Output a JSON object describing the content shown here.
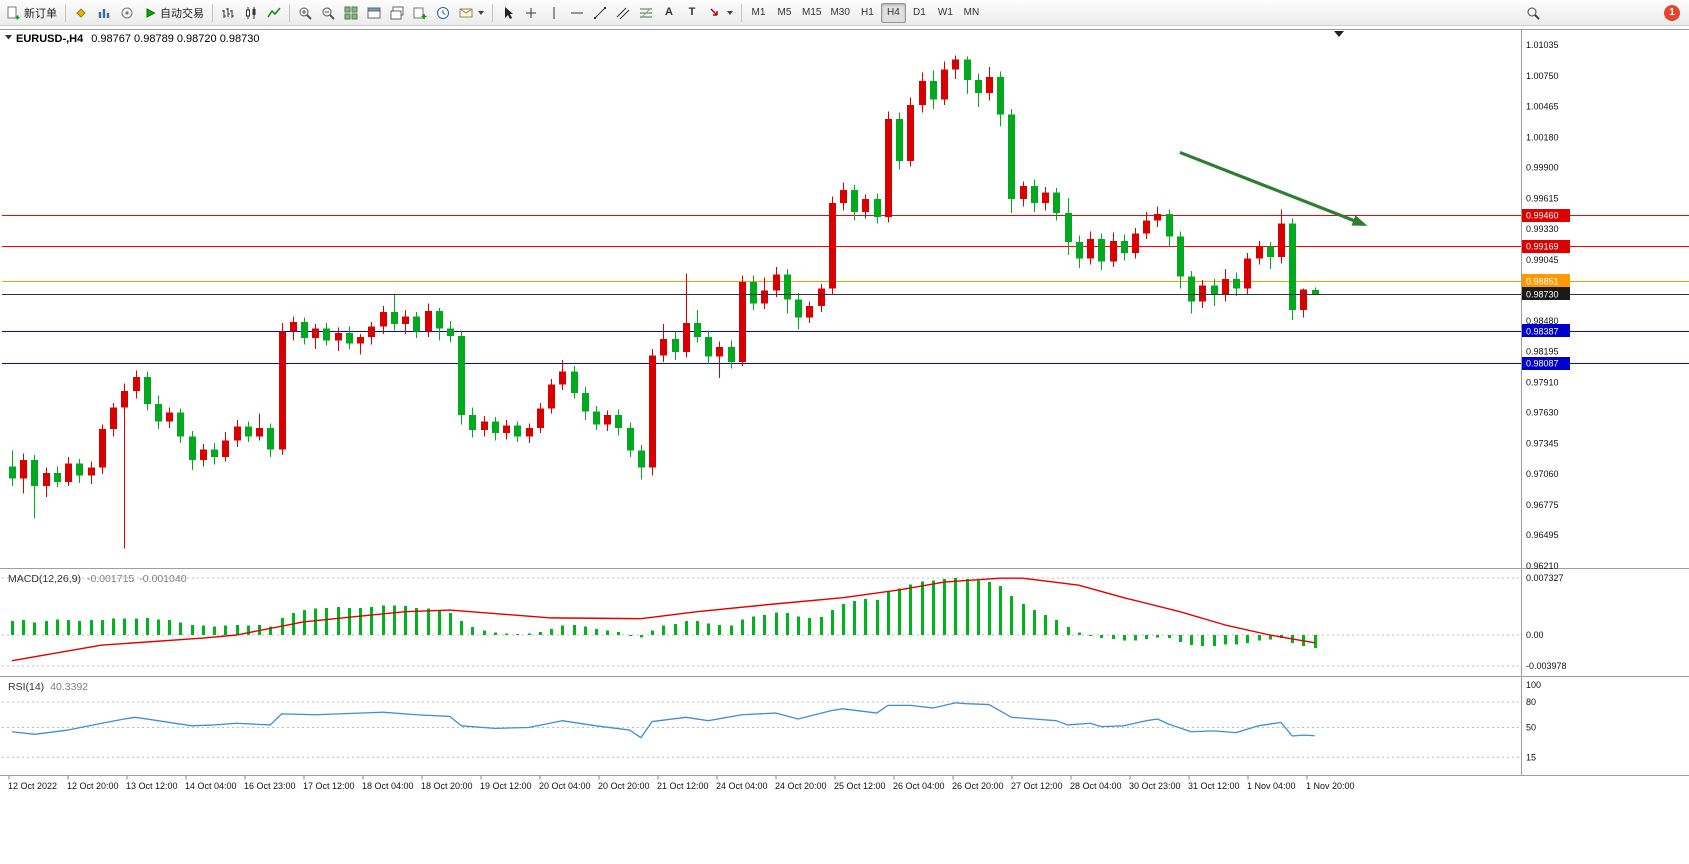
{
  "toolbar": {
    "new_order_label": "新订单",
    "auto_trading_label": "自动交易",
    "text_tool_label": "A",
    "label_tool_label": "T",
    "timeframes": [
      "M1",
      "M5",
      "M15",
      "M30",
      "H1",
      "H4",
      "D1",
      "W1",
      "MN"
    ],
    "active_timeframe": "H4",
    "notification_count": "1"
  },
  "chart_data": {
    "type": "candlestick",
    "symbol": "EURUSD-",
    "timeframe": "H4",
    "title": "EURUSD-,H4",
    "ohlc": [
      "0.98767",
      "0.98789",
      "0.98720",
      "0.98730"
    ],
    "view": {
      "price_top": 1.01035,
      "price_bottom": 0.9621
    },
    "colors": {
      "bull": "#d90000",
      "bear": "#00a91e",
      "macd_hist": "#00b41e",
      "macd_signal": "#e00000",
      "rsi_line": "#3f8fd6",
      "arrow": "#2f7d33"
    },
    "price_axis_labels": [
      "1.01035",
      "1.00750",
      "1.00465",
      "1.00180",
      "0.99900",
      "0.99615",
      "0.99330",
      "0.99045",
      "0.98760",
      "0.98480",
      "0.98195",
      "0.97910",
      "0.97630",
      "0.97345",
      "0.97060",
      "0.96775",
      "0.96495",
      "0.96210"
    ],
    "current_bid": {
      "price": 0.9873,
      "label": "0.98730",
      "line_color": "#333333",
      "tag_color": "#1a1a1a"
    },
    "hlines": [
      {
        "price": 0.9946,
        "label": "0.99460",
        "color": "#ff0000",
        "tag_bg": "#dd0000"
      },
      {
        "price": 0.99169,
        "label": "0.99169",
        "color": "#ff0000",
        "tag_bg": "#dd0000"
      },
      {
        "price": 0.98851,
        "label": "0.98851",
        "color": "#ff9900",
        "tag_bg": "#ff9900"
      },
      {
        "price": 0.98387,
        "label": "0.98387",
        "color": "#0000ff",
        "tag_bg": "#0000cc"
      },
      {
        "price": 0.98087,
        "label": "0.98087",
        "color": "#0000ff",
        "tag_bg": "#0000cc"
      }
    ],
    "trend_arrow": {
      "from_index": 104,
      "from_price": 1.0004,
      "to_index": 120.7,
      "to_price": 0.9936
    },
    "candles": [
      [
        0.9713,
        0.9728,
        0.9695,
        0.9702
      ],
      [
        0.9702,
        0.9725,
        0.9688,
        0.9719
      ],
      [
        0.9719,
        0.9724,
        0.9665,
        0.9695
      ],
      [
        0.9695,
        0.9712,
        0.9685,
        0.9707
      ],
      [
        0.9707,
        0.9713,
        0.9694,
        0.9699
      ],
      [
        0.9699,
        0.9722,
        0.9695,
        0.9716
      ],
      [
        0.9716,
        0.972,
        0.9698,
        0.9705
      ],
      [
        0.9705,
        0.9718,
        0.9697,
        0.9712
      ],
      [
        0.9712,
        0.9752,
        0.9706,
        0.9748
      ],
      [
        0.9748,
        0.9772,
        0.9741,
        0.9768
      ],
      [
        0.9768,
        0.979,
        0.9637,
        0.9783
      ],
      [
        0.9783,
        0.9802,
        0.9776,
        0.9796
      ],
      [
        0.9796,
        0.9801,
        0.9765,
        0.9771
      ],
      [
        0.9771,
        0.9779,
        0.9748,
        0.9755
      ],
      [
        0.9755,
        0.9768,
        0.9749,
        0.9763
      ],
      [
        0.9763,
        0.9767,
        0.9735,
        0.9741
      ],
      [
        0.9741,
        0.9746,
        0.971,
        0.9719
      ],
      [
        0.9719,
        0.9734,
        0.9713,
        0.9729
      ],
      [
        0.9729,
        0.9735,
        0.9715,
        0.9722
      ],
      [
        0.9722,
        0.9745,
        0.9718,
        0.9737
      ],
      [
        0.9737,
        0.9756,
        0.9731,
        0.975
      ],
      [
        0.975,
        0.9755,
        0.9736,
        0.9741
      ],
      [
        0.9741,
        0.9762,
        0.9737,
        0.9749
      ],
      [
        0.9749,
        0.9753,
        0.9722,
        0.9729
      ],
      [
        0.9729,
        0.9846,
        0.9724,
        0.9838
      ],
      [
        0.9838,
        0.9852,
        0.983,
        0.9847
      ],
      [
        0.9847,
        0.9851,
        0.9826,
        0.9832
      ],
      [
        0.9832,
        0.9845,
        0.9822,
        0.9841
      ],
      [
        0.9841,
        0.9846,
        0.9825,
        0.983
      ],
      [
        0.983,
        0.9842,
        0.982,
        0.9837
      ],
      [
        0.9837,
        0.9843,
        0.9822,
        0.9827
      ],
      [
        0.9827,
        0.9836,
        0.9817,
        0.9833
      ],
      [
        0.9833,
        0.9847,
        0.9826,
        0.9843
      ],
      [
        0.9843,
        0.9862,
        0.9836,
        0.9856
      ],
      [
        0.9856,
        0.9872,
        0.9839,
        0.9845
      ],
      [
        0.9845,
        0.9858,
        0.9836,
        0.9852
      ],
      [
        0.9852,
        0.9856,
        0.9832,
        0.9838
      ],
      [
        0.9838,
        0.9864,
        0.9833,
        0.9857
      ],
      [
        0.9857,
        0.986,
        0.983,
        0.9841
      ],
      [
        0.9841,
        0.9848,
        0.9828,
        0.9834
      ],
      [
        0.9834,
        0.9839,
        0.9752,
        0.9761
      ],
      [
        0.9761,
        0.9768,
        0.974,
        0.9747
      ],
      [
        0.9747,
        0.976,
        0.9741,
        0.9755
      ],
      [
        0.9755,
        0.9759,
        0.9737,
        0.9744
      ],
      [
        0.9744,
        0.9756,
        0.9738,
        0.9751
      ],
      [
        0.9751,
        0.9755,
        0.9736,
        0.9741
      ],
      [
        0.9741,
        0.9753,
        0.9735,
        0.9749
      ],
      [
        0.9749,
        0.9772,
        0.9744,
        0.9767
      ],
      [
        0.9767,
        0.9794,
        0.9762,
        0.9789
      ],
      [
        0.9789,
        0.9812,
        0.9784,
        0.9801
      ],
      [
        0.9801,
        0.9806,
        0.9776,
        0.9781
      ],
      [
        0.9781,
        0.9787,
        0.9756,
        0.9764
      ],
      [
        0.9764,
        0.9769,
        0.9747,
        0.9752
      ],
      [
        0.9752,
        0.9765,
        0.9746,
        0.9761
      ],
      [
        0.9761,
        0.9766,
        0.9742,
        0.9749
      ],
      [
        0.9749,
        0.9754,
        0.9722,
        0.9728
      ],
      [
        0.9728,
        0.9733,
        0.9701,
        0.9712
      ],
      [
        0.9712,
        0.9822,
        0.9705,
        0.9816
      ],
      [
        0.9816,
        0.9845,
        0.981,
        0.9831
      ],
      [
        0.9831,
        0.9838,
        0.9812,
        0.9819
      ],
      [
        0.9819,
        0.9892,
        0.9814,
        0.9846
      ],
      [
        0.9846,
        0.9858,
        0.9828,
        0.9833
      ],
      [
        0.9833,
        0.9839,
        0.9808,
        0.9815
      ],
      [
        0.9815,
        0.9829,
        0.9795,
        0.9824
      ],
      [
        0.9824,
        0.983,
        0.9804,
        0.981
      ],
      [
        0.981,
        0.989,
        0.9806,
        0.9884
      ],
      [
        0.9884,
        0.989,
        0.9858,
        0.9864
      ],
      [
        0.9864,
        0.9888,
        0.9859,
        0.9876
      ],
      [
        0.9876,
        0.9898,
        0.987,
        0.9891
      ],
      [
        0.9891,
        0.9896,
        0.9855,
        0.9868
      ],
      [
        0.9868,
        0.9874,
        0.984,
        0.9851
      ],
      [
        0.9851,
        0.9866,
        0.9846,
        0.9862
      ],
      [
        0.9862,
        0.9882,
        0.9856,
        0.9878
      ],
      [
        0.9878,
        0.9963,
        0.9872,
        0.9957
      ],
      [
        0.9957,
        0.9976,
        0.995,
        0.9969
      ],
      [
        0.9969,
        0.9974,
        0.9941,
        0.9949
      ],
      [
        0.9949,
        0.9965,
        0.9943,
        0.9961
      ],
      [
        0.9961,
        0.9966,
        0.9938,
        0.9944
      ],
      [
        0.9944,
        1.0042,
        0.9939,
        1.0035
      ],
      [
        1.0035,
        1.0041,
        0.9988,
        0.9996
      ],
      [
        0.9996,
        1.0055,
        0.9991,
        1.0048
      ],
      [
        1.0048,
        1.0078,
        1.0041,
        1.007
      ],
      [
        1.007,
        1.008,
        1.0044,
        1.0053
      ],
      [
        1.0053,
        1.0088,
        1.0048,
        1.0081
      ],
      [
        1.0081,
        1.0094,
        1.0072,
        1.009
      ],
      [
        1.009,
        1.0093,
        1.0058,
        1.0071
      ],
      [
        1.0071,
        1.0077,
        1.0046,
        1.0059
      ],
      [
        1.0059,
        1.0083,
        1.0052,
        1.0074
      ],
      [
        1.0074,
        1.0079,
        1.0028,
        1.0039
      ],
      [
        1.0039,
        1.0044,
        0.9948,
        0.9961
      ],
      [
        0.9961,
        0.9977,
        0.9954,
        0.9973
      ],
      [
        0.9973,
        0.9979,
        0.9949,
        0.9957
      ],
      [
        0.9957,
        0.9972,
        0.995,
        0.9967
      ],
      [
        0.9967,
        0.9971,
        0.9941,
        0.9948
      ],
      [
        0.9948,
        0.9962,
        0.9909,
        0.9921
      ],
      [
        0.9921,
        0.9927,
        0.9897,
        0.9906
      ],
      [
        0.9906,
        0.9931,
        0.99,
        0.9924
      ],
      [
        0.9924,
        0.9929,
        0.9895,
        0.9903
      ],
      [
        0.9903,
        0.993,
        0.9898,
        0.9922
      ],
      [
        0.9922,
        0.9928,
        0.9904,
        0.9911
      ],
      [
        0.9911,
        0.9934,
        0.9906,
        0.9929
      ],
      [
        0.9929,
        0.9949,
        0.9924,
        0.9941
      ],
      [
        0.9941,
        0.9954,
        0.9935,
        0.9947
      ],
      [
        0.9947,
        0.9951,
        0.9917,
        0.9926
      ],
      [
        0.9926,
        0.9931,
        0.9878,
        0.9889
      ],
      [
        0.9889,
        0.9894,
        0.9855,
        0.9866
      ],
      [
        0.9866,
        0.9886,
        0.986,
        0.9881
      ],
      [
        0.9881,
        0.9887,
        0.9862,
        0.9872
      ],
      [
        0.9872,
        0.9896,
        0.9866,
        0.9887
      ],
      [
        0.9887,
        0.9893,
        0.9871,
        0.9878
      ],
      [
        0.9878,
        0.9911,
        0.9873,
        0.9906
      ],
      [
        0.9906,
        0.9922,
        0.99,
        0.9917
      ],
      [
        0.9917,
        0.9921,
        0.9896,
        0.9907
      ],
      [
        0.9907,
        0.9951,
        0.9901,
        0.9938
      ],
      [
        0.9938,
        0.9943,
        0.9849,
        0.9858
      ],
      [
        0.9858,
        0.9878,
        0.9851,
        0.9877
      ],
      [
        0.98767,
        0.98789,
        0.9872,
        0.9873
      ]
    ],
    "macd": {
      "name": "MACD(12,26,9)",
      "value_main": "-0.001715",
      "value_signal": "-0.001040",
      "axis_labels": [
        "0.007327",
        "0.00",
        "-0.003978"
      ],
      "axis_values": [
        0.007327,
        0,
        -0.003978
      ],
      "histogram": [
        0.0018,
        0.0019,
        0.0016,
        0.0018,
        0.002,
        0.0019,
        0.0018,
        0.0019,
        0.0019,
        0.0021,
        0.0021,
        0.0021,
        0.0022,
        0.002,
        0.0019,
        0.0016,
        0.0013,
        0.0012,
        0.0011,
        0.0012,
        0.0013,
        0.0012,
        0.0013,
        0.0011,
        0.0022,
        0.0028,
        0.0032,
        0.0034,
        0.0035,
        0.0036,
        0.0035,
        0.0035,
        0.0036,
        0.0038,
        0.0038,
        0.0037,
        0.0035,
        0.0034,
        0.0032,
        0.0028,
        0.0018,
        0.001,
        0.0006,
        0.0003,
        0.0002,
        0.0001,
        0.0002,
        0.0004,
        0.0008,
        0.0012,
        0.0013,
        0.0011,
        0.0008,
        0.0006,
        0.0004,
        0.0,
        -0.0003,
        0.0006,
        0.0012,
        0.0014,
        0.0018,
        0.0018,
        0.0015,
        0.0013,
        0.0012,
        0.002,
        0.0024,
        0.0026,
        0.0029,
        0.0028,
        0.0024,
        0.0022,
        0.0023,
        0.0032,
        0.004,
        0.0044,
        0.0046,
        0.0045,
        0.0056,
        0.006,
        0.0065,
        0.0069,
        0.007,
        0.0072,
        0.0073,
        0.0072,
        0.007,
        0.0068,
        0.0063,
        0.005,
        0.004,
        0.0032,
        0.0026,
        0.0019,
        0.001,
        0.0003,
        -0.0001,
        -0.0004,
        -0.0005,
        -0.0007,
        -0.0007,
        -0.0005,
        -0.0003,
        -0.0004,
        -0.0009,
        -0.0013,
        -0.0014,
        -0.0014,
        -0.0012,
        -0.0012,
        -0.001,
        -0.0007,
        -0.0006,
        -0.0004,
        -0.001,
        -0.0014,
        -0.0017
      ],
      "signal_points": [
        [
          0,
          -0.0033
        ],
        [
          8,
          -0.0013
        ],
        [
          17,
          -0.0004
        ],
        [
          20,
          0
        ],
        [
          26,
          0.0017
        ],
        [
          35,
          0.003
        ],
        [
          39,
          0.0032
        ],
        [
          48,
          0.0022
        ],
        [
          56,
          0.0021
        ],
        [
          61,
          0.003
        ],
        [
          68,
          0.004
        ],
        [
          74,
          0.0048
        ],
        [
          79,
          0.0058
        ],
        [
          83,
          0.0068
        ],
        [
          88,
          0.0073
        ],
        [
          90,
          0.0073
        ],
        [
          95,
          0.0064
        ],
        [
          99,
          0.0048
        ],
        [
          104,
          0.003
        ],
        [
          108,
          0.0013
        ],
        [
          112,
          0
        ],
        [
          116,
          -0.001
        ]
      ]
    },
    "rsi": {
      "name": "RSI(14)",
      "value": "40.3392",
      "axis_labels": [
        "100",
        "80",
        "50",
        "15"
      ],
      "axis_values": [
        100,
        80,
        50,
        15
      ],
      "levels": [
        80,
        50,
        15
      ],
      "points": [
        [
          0,
          45
        ],
        [
          2,
          42
        ],
        [
          5,
          47
        ],
        [
          8,
          55
        ],
        [
          10,
          60
        ],
        [
          11,
          62
        ],
        [
          13,
          58
        ],
        [
          16,
          52
        ],
        [
          18,
          53
        ],
        [
          20,
          55
        ],
        [
          23,
          53
        ],
        [
          24,
          66
        ],
        [
          27,
          65
        ],
        [
          33,
          68
        ],
        [
          36,
          65
        ],
        [
          39,
          63
        ],
        [
          40,
          52
        ],
        [
          43,
          49
        ],
        [
          46,
          50
        ],
        [
          49,
          58
        ],
        [
          52,
          52
        ],
        [
          55,
          47
        ],
        [
          56,
          38
        ],
        [
          57,
          57
        ],
        [
          60,
          62
        ],
        [
          62,
          58
        ],
        [
          65,
          65
        ],
        [
          68,
          67
        ],
        [
          70,
          60
        ],
        [
          73,
          70
        ],
        [
          74,
          72
        ],
        [
          77,
          67
        ],
        [
          78,
          76
        ],
        [
          80,
          76
        ],
        [
          82,
          73
        ],
        [
          84,
          79
        ],
        [
          85,
          78
        ],
        [
          87,
          77
        ],
        [
          89,
          62
        ],
        [
          91,
          60
        ],
        [
          93,
          58
        ],
        [
          94,
          53
        ],
        [
          96,
          55
        ],
        [
          97,
          51
        ],
        [
          99,
          52
        ],
        [
          101,
          58
        ],
        [
          102,
          60
        ],
        [
          103,
          54
        ],
        [
          105,
          45
        ],
        [
          107,
          46
        ],
        [
          109,
          44
        ],
        [
          111,
          52
        ],
        [
          113,
          56
        ],
        [
          114,
          40
        ],
        [
          115,
          41
        ],
        [
          116,
          40.3
        ]
      ]
    },
    "time_labels": [
      "12 Oct 2022",
      "12 Oct 20:00",
      "13 Oct 12:00",
      "14 Oct 04:00",
      "16 Oct 23:00",
      "17 Oct 12:00",
      "18 Oct 04:00",
      "18 Oct 20:00",
      "19 Oct 12:00",
      "20 Oct 04:00",
      "20 Oct 20:00",
      "21 Oct 12:00",
      "24 Oct 04:00",
      "24 Oct 20:00",
      "25 Oct 12:00",
      "26 Oct 04:00",
      "26 Oct 20:00",
      "27 Oct 12:00",
      "28 Oct 04:00",
      "30 Oct 23:00",
      "31 Oct 12:00",
      "1 Nov 04:00",
      "1 Nov 20:00"
    ]
  }
}
